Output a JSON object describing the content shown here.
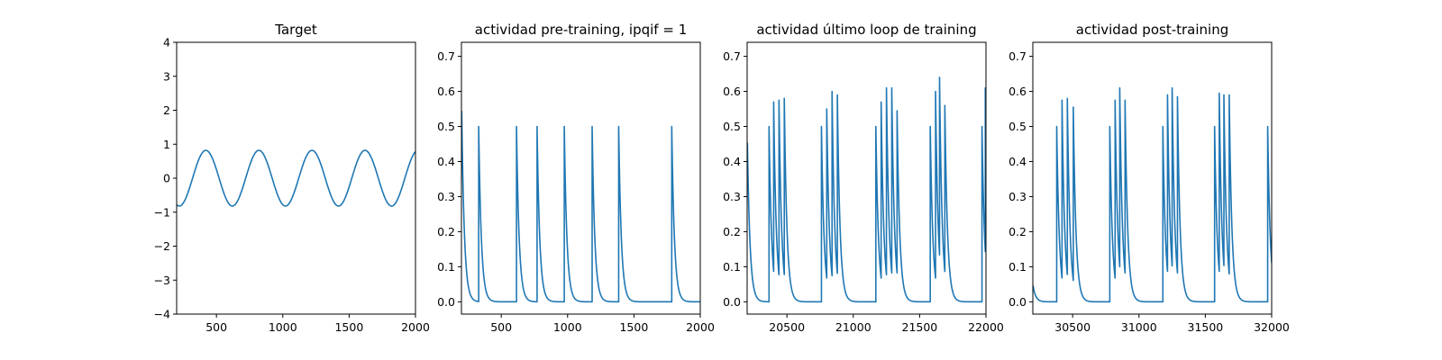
{
  "colors": {
    "series": "#1f77b4",
    "axes": "#000000",
    "background": "#ffffff"
  },
  "chart_data": [
    {
      "type": "line",
      "title": "Target",
      "xlabel": "",
      "ylabel": "",
      "xlim": [
        200,
        2000
      ],
      "ylim": [
        -4,
        4
      ],
      "xticks": [
        500,
        1000,
        1500,
        2000
      ],
      "yticks": [
        -4,
        -3,
        -2,
        -1,
        0,
        1,
        2,
        3,
        4
      ],
      "xtick_labels": [
        "500",
        "1000",
        "1500",
        "2000"
      ],
      "ytick_labels": [
        "−4",
        "−3",
        "−2",
        "−1",
        "0",
        "1",
        "2",
        "3",
        "4"
      ],
      "grid": false,
      "series": [
        {
          "kind": "sine",
          "amplitude": 0.82,
          "period": 400,
          "peaks_at": [
            420,
            820,
            1220,
            1620
          ],
          "x_range": [
            200,
            2000
          ]
        }
      ]
    },
    {
      "type": "line",
      "title": "actividad pre-training, ipqif = 1",
      "xlabel": "",
      "ylabel": "",
      "xlim": [
        200,
        2000
      ],
      "ylim": [
        -0.035,
        0.74
      ],
      "xticks": [
        500,
        1000,
        1500,
        2000
      ],
      "yticks": [
        0.0,
        0.1,
        0.2,
        0.3,
        0.4,
        0.5,
        0.6,
        0.7
      ],
      "xtick_labels": [
        "500",
        "1000",
        "1500",
        "2000"
      ],
      "ytick_labels": [
        "0.0",
        "0.1",
        "0.2",
        "0.3",
        "0.4",
        "0.5",
        "0.6",
        "0.7"
      ],
      "grid": false,
      "series": [
        {
          "kind": "spike_train",
          "x_range": [
            200,
            2000
          ],
          "start_value": 0.6,
          "decay": 20,
          "spikes": [
            {
              "x": 330,
              "v": 0.5
            },
            {
              "x": 615,
              "v": 0.5
            },
            {
              "x": 770,
              "v": 0.5
            },
            {
              "x": 975,
              "v": 0.5
            },
            {
              "x": 1185,
              "v": 0.5
            },
            {
              "x": 1385,
              "v": 0.5
            },
            {
              "x": 1785,
              "v": 0.5
            }
          ]
        }
      ]
    },
    {
      "type": "line",
      "title": "actividad último loop de training",
      "xlabel": "",
      "ylabel": "",
      "xlim": [
        20200,
        22000
      ],
      "ylim": [
        -0.035,
        0.74
      ],
      "xticks": [
        20500,
        21000,
        21500,
        22000
      ],
      "yticks": [
        0.0,
        0.1,
        0.2,
        0.3,
        0.4,
        0.5,
        0.6,
        0.7
      ],
      "xtick_labels": [
        "20500",
        "21000",
        "21500",
        "22000"
      ],
      "ytick_labels": [
        "0.0",
        "0.1",
        "0.2",
        "0.3",
        "0.4",
        "0.5",
        "0.6",
        "0.7"
      ],
      "grid": false,
      "series": [
        {
          "kind": "spike_train",
          "x_range": [
            20200,
            22000
          ],
          "start_value": 0.5,
          "decay": 20,
          "spikes": [
            {
              "x": 20365,
              "v": 0.5
            },
            {
              "x": 20400,
              "v": 0.57
            },
            {
              "x": 20440,
              "v": 0.575
            },
            {
              "x": 20480,
              "v": 0.58
            },
            {
              "x": 20760,
              "v": 0.5
            },
            {
              "x": 20800,
              "v": 0.55
            },
            {
              "x": 20840,
              "v": 0.6
            },
            {
              "x": 20880,
              "v": 0.59
            },
            {
              "x": 21170,
              "v": 0.5
            },
            {
              "x": 21210,
              "v": 0.57
            },
            {
              "x": 21250,
              "v": 0.61
            },
            {
              "x": 21290,
              "v": 0.61
            },
            {
              "x": 21330,
              "v": 0.545
            },
            {
              "x": 21580,
              "v": 0.5
            },
            {
              "x": 21620,
              "v": 0.6
            },
            {
              "x": 21650,
              "v": 0.64
            },
            {
              "x": 21690,
              "v": 0.56
            },
            {
              "x": 21970,
              "v": 0.5
            },
            {
              "x": 21995,
              "v": 0.61
            }
          ]
        }
      ]
    },
    {
      "type": "line",
      "title": "actividad post-training",
      "xlabel": "",
      "ylabel": "",
      "xlim": [
        30200,
        32000
      ],
      "ylim": [
        -0.035,
        0.74
      ],
      "xticks": [
        30500,
        31000,
        31500,
        32000
      ],
      "yticks": [
        0.0,
        0.1,
        0.2,
        0.3,
        0.4,
        0.5,
        0.6,
        0.7
      ],
      "xtick_labels": [
        "30500",
        "31000",
        "31500",
        "32000"
      ],
      "ytick_labels": [
        "0.0",
        "0.1",
        "0.2",
        "0.3",
        "0.4",
        "0.5",
        "0.6",
        "0.7"
      ],
      "grid": false,
      "series": [
        {
          "kind": "spike_train",
          "x_range": [
            30200,
            32000
          ],
          "start_value": 0.05,
          "decay": 20,
          "spikes": [
            {
              "x": 30380,
              "v": 0.5
            },
            {
              "x": 30420,
              "v": 0.575
            },
            {
              "x": 30460,
              "v": 0.58
            },
            {
              "x": 30505,
              "v": 0.555
            },
            {
              "x": 30780,
              "v": 0.5
            },
            {
              "x": 30820,
              "v": 0.575
            },
            {
              "x": 30855,
              "v": 0.61
            },
            {
              "x": 30895,
              "v": 0.575
            },
            {
              "x": 31180,
              "v": 0.5
            },
            {
              "x": 31215,
              "v": 0.59
            },
            {
              "x": 31250,
              "v": 0.61
            },
            {
              "x": 31290,
              "v": 0.585
            },
            {
              "x": 31570,
              "v": 0.5
            },
            {
              "x": 31605,
              "v": 0.595
            },
            {
              "x": 31640,
              "v": 0.59
            },
            {
              "x": 31680,
              "v": 0.59
            },
            {
              "x": 31970,
              "v": 0.5
            }
          ]
        }
      ]
    }
  ]
}
